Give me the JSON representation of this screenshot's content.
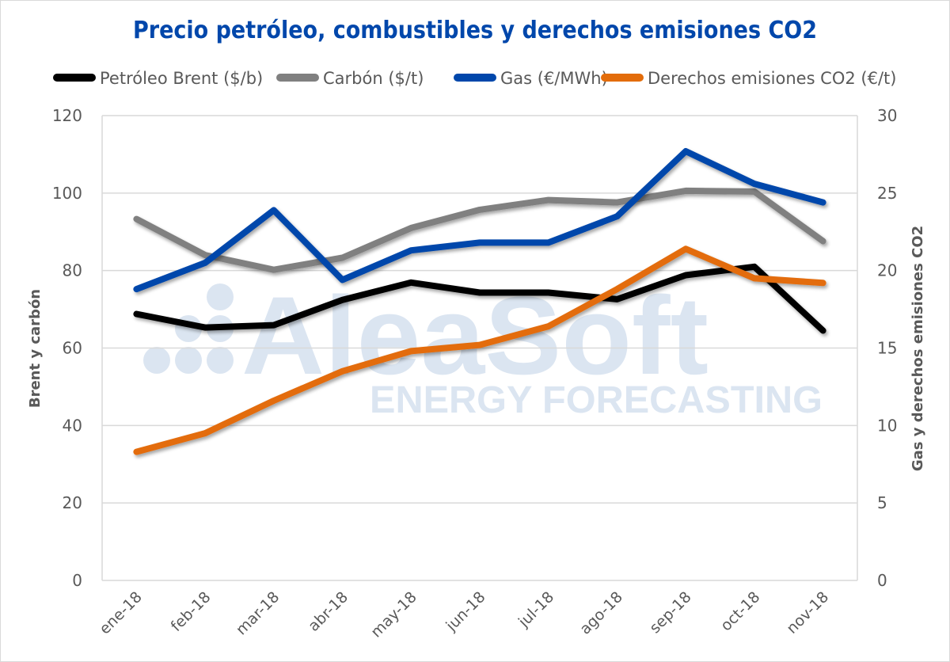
{
  "chart_data": {
    "type": "line",
    "title": "Precio petróleo, combustibles y derechos emisiones CO2",
    "categories": [
      "ene-18",
      "feb-18",
      "mar-18",
      "abr-18",
      "may-18",
      "jun-18",
      "jul-18",
      "ago-18",
      "sep-18",
      "oct-18",
      "nov-18"
    ],
    "series": [
      {
        "name": "Petróleo Brent ($/b)",
        "axis": "left",
        "color": "#000000",
        "values": [
          68.8,
          65.3,
          65.9,
          72.4,
          76.9,
          74.3,
          74.3,
          72.6,
          78.8,
          81.0,
          64.5
        ]
      },
      {
        "name": "Carbón ($/t)",
        "axis": "left",
        "color": "#808080",
        "values": [
          93.3,
          84.0,
          80.2,
          83.3,
          91.0,
          95.7,
          98.2,
          97.6,
          100.6,
          100.4,
          87.6
        ]
      },
      {
        "name": "Gas (€/MWh)",
        "axis": "right",
        "color": "#0047ab",
        "values": [
          18.8,
          20.5,
          23.9,
          19.4,
          21.3,
          21.8,
          21.8,
          23.5,
          27.7,
          25.6,
          24.4
        ]
      },
      {
        "name": "Derechos emisiones CO2 (€/t)",
        "axis": "right",
        "color": "#e36c0a",
        "values": [
          8.3,
          9.5,
          11.6,
          13.5,
          14.8,
          15.2,
          16.4,
          18.8,
          21.4,
          19.5,
          19.2
        ]
      }
    ],
    "ylabel": "Brent y carbón",
    "y2label": "Gas y derechos emisiones CO2",
    "xlabel": "",
    "ylim": [
      0,
      120
    ],
    "y2lim": [
      0,
      30
    ],
    "yticks": [
      "0",
      "20",
      "40",
      "60",
      "80",
      "100",
      "120"
    ],
    "y2ticks": [
      "0",
      "5",
      "10",
      "15",
      "20",
      "25",
      "30"
    ],
    "grid": true,
    "legend_position": "top"
  },
  "watermark": {
    "brand": "AleaSoft",
    "tagline": "ENERGY FORECASTING"
  }
}
